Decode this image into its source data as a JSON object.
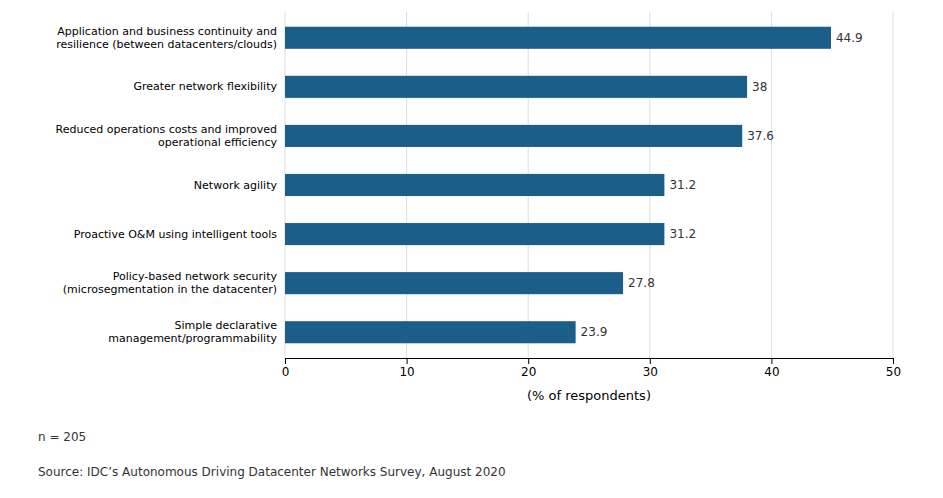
{
  "chart_data": {
    "type": "bar",
    "orientation": "horizontal",
    "categories": [
      "Simple declarative\nmanagement/programmability",
      "Policy-based network security\n(microsegmentation in the datacenter)",
      "Proactive O&M using intelligent tools",
      "Network agility",
      "Reduced operations costs and improved\noperational efficiency",
      "Greater network flexibility",
      "Application and business continuity and\nresilience (between datacenters/clouds)"
    ],
    "values": [
      23.9,
      27.8,
      31.2,
      31.2,
      37.6,
      38,
      44.9
    ],
    "color": "#1B5E8A",
    "xlabel": "(% of respondents)",
    "xlim": [
      0,
      50
    ],
    "xticks": [
      0,
      10,
      20,
      30,
      40,
      50
    ],
    "grid": true,
    "data_labels": true,
    "annotations": [
      "n = 205",
      "Source: IDC’s Autonomous Driving Datacenter Networks Survey, August 2020"
    ]
  }
}
